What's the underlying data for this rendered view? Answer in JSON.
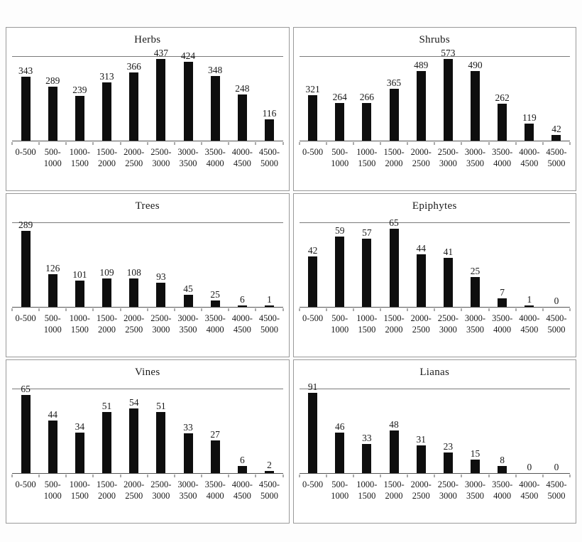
{
  "page": {
    "background": "#fdfdfd",
    "bar_color": "#0e0e0e",
    "panel_border_color": "#999999",
    "axis_line_color": "#555555"
  },
  "chart_data": [
    {
      "type": "bar",
      "title": "Herbs",
      "categories": [
        "0-500",
        "500-1000",
        "1000-1500",
        "1500-2000",
        "2000-2500",
        "2500-3000",
        "3000-3500",
        "3500-4000",
        "4000-4500",
        "4500-5000"
      ],
      "values": [
        343,
        289,
        239,
        313,
        366,
        437,
        424,
        348,
        248,
        116
      ],
      "xlabel": "",
      "ylabel": "",
      "ylim": [
        0,
        450
      ],
      "grid": false,
      "legend": "none",
      "value_labels": true
    },
    {
      "type": "bar",
      "title": "Shrubs",
      "categories": [
        "0-500",
        "500-1000",
        "1000-1500",
        "1500-2000",
        "2000-2500",
        "2500-3000",
        "3000-3500",
        "3500-4000",
        "4000-4500",
        "4500-5000"
      ],
      "values": [
        321,
        264,
        266,
        365,
        489,
        573,
        490,
        262,
        119,
        42
      ],
      "xlabel": "",
      "ylabel": "",
      "ylim": [
        0,
        590
      ],
      "grid": false,
      "legend": "none",
      "value_labels": true
    },
    {
      "type": "bar",
      "title": "Trees",
      "categories": [
        "0-500",
        "500-1000",
        "1000-1500",
        "1500-2000",
        "2000-2500",
        "2500-3000",
        "3000-3500",
        "3500-4000",
        "4000-4500",
        "4500-5000"
      ],
      "values": [
        289,
        126,
        101,
        109,
        108,
        93,
        45,
        25,
        6,
        1
      ],
      "xlabel": "",
      "ylabel": "",
      "ylim": [
        0,
        320
      ],
      "grid": false,
      "legend": "none",
      "value_labels": true
    },
    {
      "type": "bar",
      "title": "Epiphytes",
      "categories": [
        "0-500",
        "500-1000",
        "1000-1500",
        "1500-2000",
        "2000-2500",
        "2500-3000",
        "3000-3500",
        "3500-4000",
        "4000-4500",
        "4500-5000"
      ],
      "values": [
        42,
        59,
        57,
        65,
        44,
        41,
        25,
        7,
        1,
        0
      ],
      "xlabel": "",
      "ylabel": "",
      "ylim": [
        0,
        70
      ],
      "grid": false,
      "legend": "none",
      "value_labels": true
    },
    {
      "type": "bar",
      "title": "Vines",
      "categories": [
        "0-500",
        "500-1000",
        "1000-1500",
        "1500-2000",
        "2000-2500",
        "2500-3000",
        "3000-3500",
        "3500-4000",
        "4000-4500",
        "4500-5000"
      ],
      "values": [
        65,
        44,
        34,
        51,
        54,
        51,
        33,
        27,
        6,
        2
      ],
      "xlabel": "",
      "ylabel": "",
      "ylim": [
        0,
        70
      ],
      "grid": false,
      "legend": "none",
      "value_labels": true
    },
    {
      "type": "bar",
      "title": "Lianas",
      "categories": [
        "0-500",
        "500-1000",
        "1000-1500",
        "1500-2000",
        "2000-2500",
        "2500-3000",
        "3000-3500",
        "3500-4000",
        "4000-4500",
        "4500-5000"
      ],
      "values": [
        91,
        46,
        33,
        48,
        31,
        23,
        15,
        8,
        0,
        0
      ],
      "xlabel": "",
      "ylabel": "",
      "ylim": [
        0,
        95
      ],
      "grid": false,
      "legend": "none",
      "value_labels": true
    }
  ]
}
